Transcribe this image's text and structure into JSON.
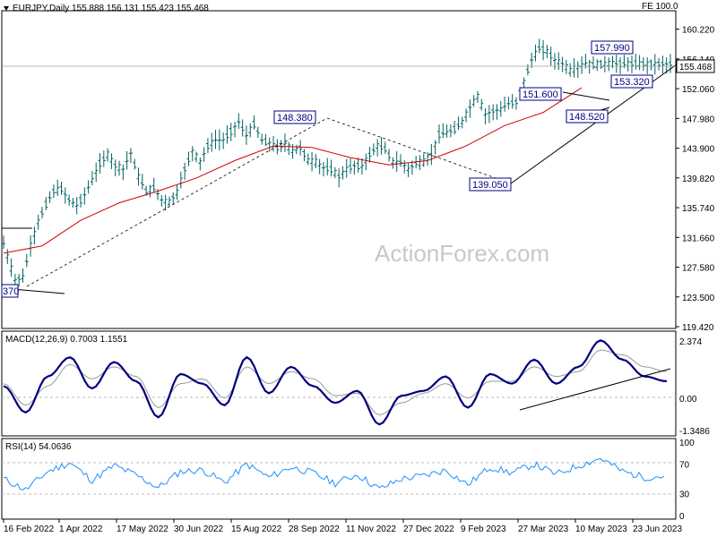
{
  "header": {
    "symbol_info": "EURJPY,Daily  155.888 156.131 155.423 155.468",
    "fe_label": "FE 100.0",
    "watermark": "ActionForex.com",
    "current_price": "155.468"
  },
  "colors": {
    "candles": "#006060",
    "ma": "#d40000",
    "macd_line": "#000080",
    "macd_signal": "#999999",
    "rsi": "#1e90ff",
    "annotation": "#000080"
  },
  "chart_data": [
    {
      "type": "line",
      "name": "price",
      "title": "",
      "x_ticks": [
        "16 Feb 2022",
        "1 Apr 2022",
        "17 May 2022",
        "30 Jun 2022",
        "15 Aug 2022",
        "28 Sep 2022",
        "11 Nov 2022",
        "27 Dec 2022",
        "9 Feb 2023",
        "27 Mar 2023",
        "10 May 2023",
        "23 Jun 2023"
      ],
      "y_ticks": [
        "160.220",
        "156.140",
        "152.060",
        "147.980",
        "143.900",
        "139.820",
        "135.740",
        "131.660",
        "127.580",
        "123.500",
        "119.420"
      ],
      "ylim": [
        119.42,
        162.5
      ],
      "series": [
        {
          "x": [
            0,
            3,
            6,
            10,
            14,
            18,
            22,
            26,
            30,
            34,
            38,
            42,
            46,
            50,
            54,
            58,
            62,
            66,
            70,
            74,
            78,
            82,
            86,
            90,
            94,
            98,
            102,
            106,
            110,
            114,
            118,
            122,
            126,
            130,
            134,
            138,
            142,
            146,
            150,
            154,
            158,
            162,
            166,
            170,
            174,
            178,
            182,
            186,
            190,
            194,
            198,
            202,
            206,
            210,
            214,
            218,
            222,
            226,
            230,
            234,
            238,
            242,
            246,
            250,
            254,
            258,
            262,
            266,
            270,
            274,
            278,
            282,
            286,
            290,
            294,
            298,
            302,
            306,
            310,
            314,
            318,
            322,
            326,
            330,
            334,
            338,
            342,
            346
          ],
          "values": [
            130.8,
            128.2,
            125.8,
            126.2,
            130.5,
            133.8,
            136.2,
            138.0,
            138.3,
            136.8,
            136.0,
            137.5,
            139.5,
            141.8,
            143.0,
            141.5,
            141.0,
            143.2,
            140.0,
            138.0,
            138.5,
            136.8,
            136.5,
            137.8,
            141.0,
            143.5,
            142.0,
            144.2,
            145.0,
            145.0,
            146.2,
            147.5,
            145.6,
            147.2,
            145.0,
            144.6,
            144.0,
            144.5,
            143.5,
            144.0,
            142.2,
            142.0,
            141.2,
            141.0,
            140.0,
            141.0,
            141.5,
            141.4,
            143.0,
            144.2,
            143.8,
            142.0,
            142.0,
            141.0,
            141.8,
            142.0,
            143.0,
            145.8,
            146.0,
            146.5,
            147.5,
            149.5,
            151.0,
            148.5,
            149.0,
            149.2,
            150.0,
            150.2,
            153.0,
            156.0,
            157.6,
            157.2,
            156.0,
            155.5,
            154.5,
            155.0,
            155.5,
            155.3,
            155.4,
            155.5,
            155.47,
            155.47,
            155.47,
            155.47,
            155.47,
            155.47,
            155.47,
            155.47
          ]
        },
        {
          "name": "",
          "x": [
            0,
            20,
            40,
            60,
            80,
            100,
            120,
            140,
            160,
            180,
            200,
            220,
            240,
            260,
            280,
            300
          ],
          "values": [
            129.5,
            130.5,
            134.0,
            136.4,
            138.0,
            139.8,
            142.2,
            144.2,
            144.0,
            142.6,
            141.6,
            142.2,
            144.2,
            147.0,
            148.8,
            152.2
          ]
        }
      ],
      "annotations": [
        "157.990",
        "151.600",
        "148.380",
        "148.520",
        "153.320",
        "139.050",
        "370"
      ]
    },
    {
      "type": "line",
      "name": "macd",
      "title": "MACD(12,26,9) 0.7003 1.1551",
      "y_ticks": [
        "2.374",
        "0.00",
        "-1.3486"
      ],
      "ylim": [
        -1.5,
        2.6
      ],
      "series": [
        {
          "name": "",
          "x": [
            0,
            10,
            20,
            30,
            40,
            50,
            60,
            70,
            80,
            90,
            100,
            110,
            120,
            130,
            140,
            150,
            160,
            170,
            180,
            190,
            200,
            210,
            220,
            230,
            240,
            250,
            260,
            270,
            280,
            290,
            300
          ],
          "values": [
            0.5,
            -0.6,
            0.9,
            1.7,
            0.4,
            1.5,
            0.7,
            -0.8,
            1.0,
            0.6,
            -0.3,
            1.7,
            0.2,
            1.3,
            0.5,
            -0.2,
            0.3,
            -1.1,
            0.1,
            0.3,
            0.9,
            -0.4,
            1.0,
            0.6,
            1.6,
            0.6,
            1.3,
            2.4,
            1.6,
            0.9,
            0.7
          ]
        },
        {
          "name": "",
          "x": [
            0,
            10,
            20,
            30,
            40,
            50,
            60,
            70,
            80,
            90,
            100,
            110,
            120,
            130,
            140,
            150,
            160,
            170,
            180,
            190,
            200,
            210,
            220,
            230,
            240,
            250,
            260,
            270,
            280,
            290,
            300
          ],
          "values": [
            0.6,
            -0.3,
            0.5,
            1.4,
            0.8,
            1.3,
            0.9,
            -0.4,
            0.6,
            0.8,
            0.0,
            1.3,
            0.6,
            1.1,
            0.8,
            0.1,
            0.2,
            -0.7,
            -0.2,
            0.2,
            0.6,
            0.0,
            0.7,
            0.7,
            1.3,
            0.9,
            1.1,
            2.0,
            1.8,
            1.3,
            1.1
          ]
        }
      ]
    },
    {
      "type": "line",
      "name": "rsi",
      "title": "RSI(14) 54.0636",
      "y_ticks": [
        "100",
        "70",
        "30",
        "0"
      ],
      "ylim": [
        0,
        100
      ],
      "series": [
        {
          "name": "",
          "x": [
            0,
            10,
            20,
            30,
            40,
            50,
            60,
            70,
            80,
            90,
            100,
            110,
            120,
            130,
            140,
            150,
            160,
            170,
            180,
            190,
            200,
            210,
            220,
            230,
            240,
            250,
            260,
            270,
            280,
            290,
            300
          ],
          "values": [
            50,
            35,
            60,
            72,
            48,
            68,
            55,
            38,
            60,
            62,
            45,
            70,
            52,
            66,
            58,
            44,
            56,
            36,
            50,
            54,
            62,
            42,
            66,
            58,
            70,
            56,
            68,
            78,
            60,
            52,
            54
          ]
        }
      ]
    }
  ]
}
